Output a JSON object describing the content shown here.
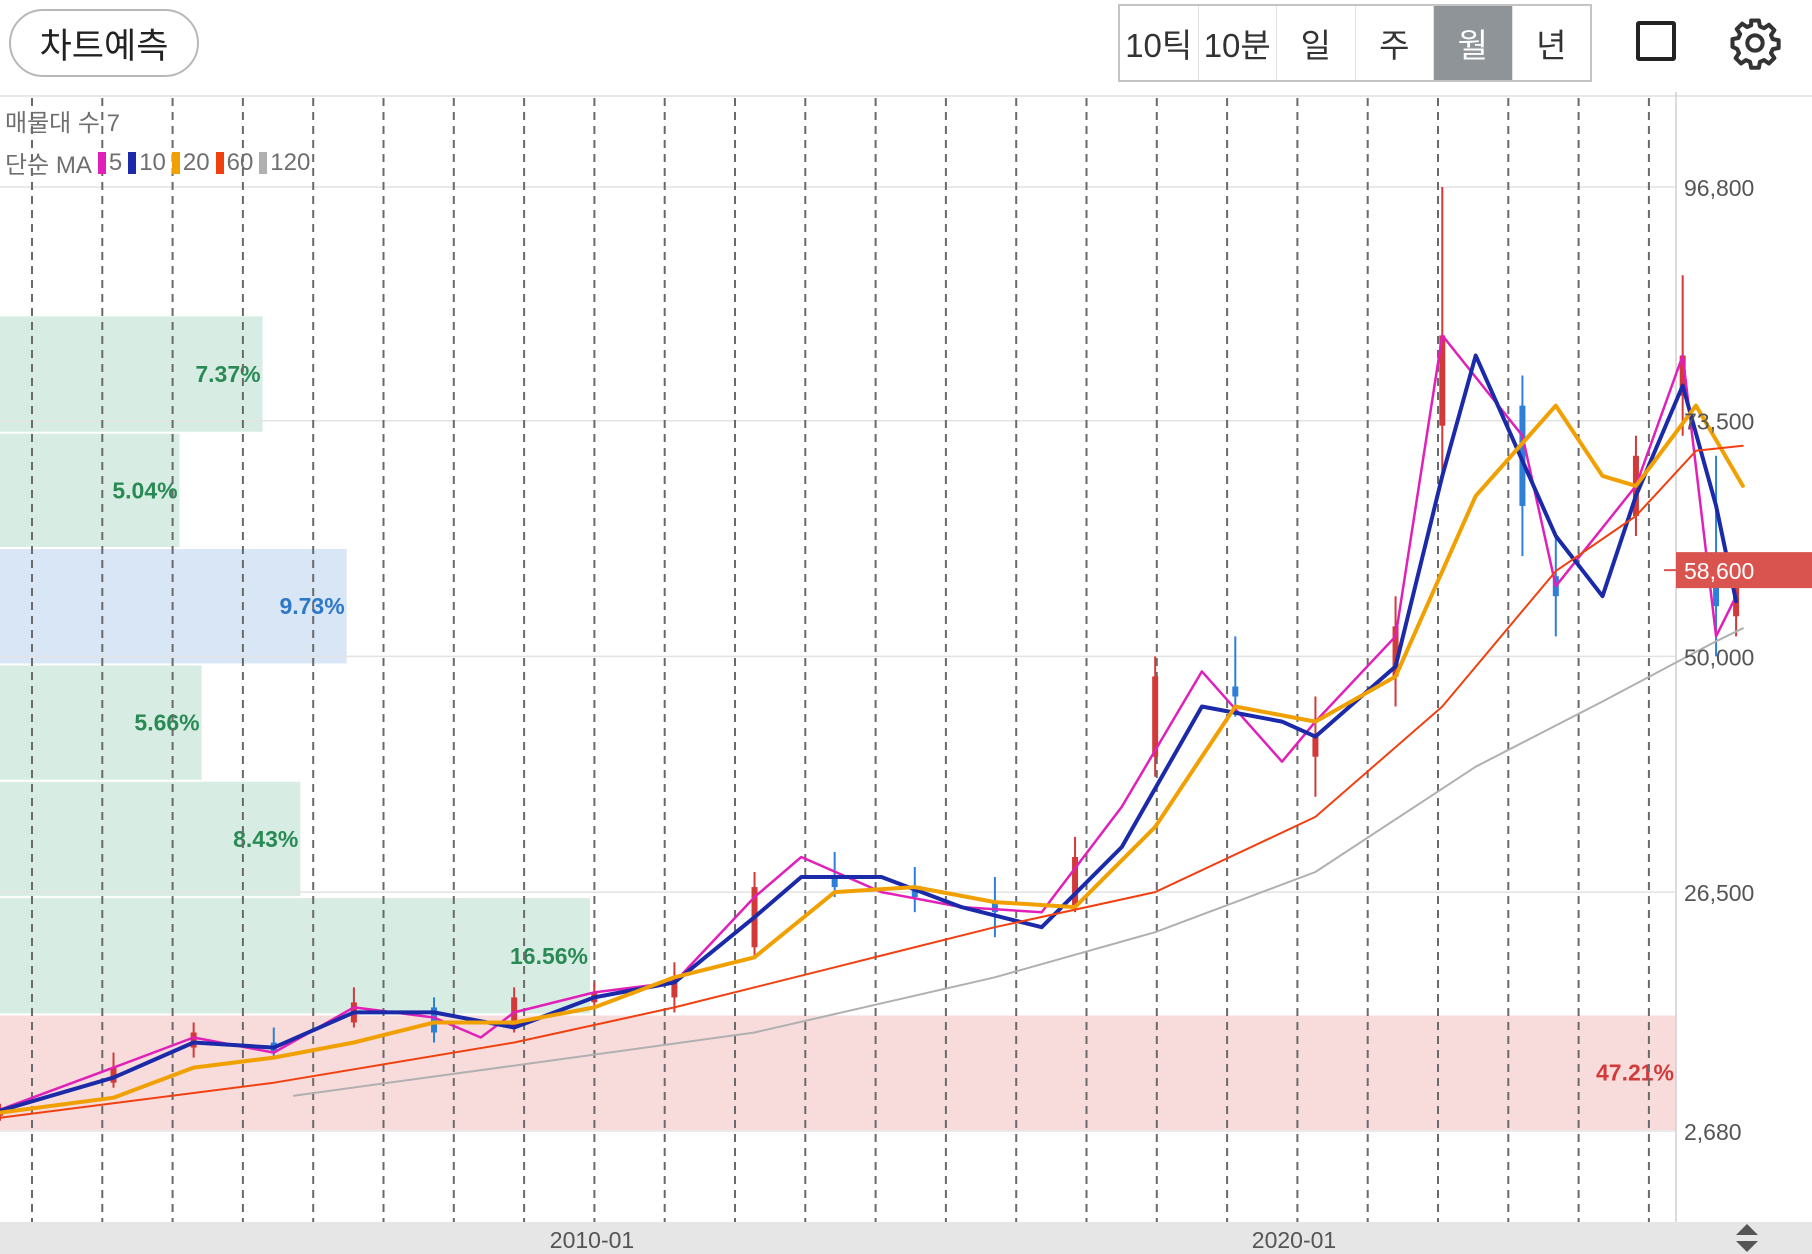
{
  "toolbar": {
    "predict_label": "차트예측",
    "periods": [
      {
        "label": "10틱",
        "active": false
      },
      {
        "label": "10분",
        "active": false
      },
      {
        "label": "일",
        "active": false
      },
      {
        "label": "주",
        "active": false
      },
      {
        "label": "월",
        "active": true
      },
      {
        "label": "년",
        "active": false
      }
    ],
    "icons": [
      "square-icon",
      "gear-icon"
    ]
  },
  "legend": {
    "volume_profile_label": "매물대 수 7",
    "ma_prefix": "단순 MA",
    "ma_items": [
      {
        "label": "5",
        "color": "#e020b8"
      },
      {
        "label": "10",
        "color": "#1a2aa8"
      },
      {
        "label": "20",
        "color": "#f0a000"
      },
      {
        "label": "60",
        "color": "#f04010"
      },
      {
        "label": "120",
        "color": "#b0b0b0"
      }
    ]
  },
  "chart_data": {
    "type": "candlestick",
    "interval": "월",
    "y_axis": {
      "ticks": [
        "96,800",
        "73,500",
        "50,000",
        "26,500",
        "2,680"
      ],
      "tick_values": [
        96800,
        73500,
        50000,
        26500,
        2680
      ],
      "range": [
        2680,
        96800
      ]
    },
    "x_axis": {
      "ticks": [
        "2010-01",
        "2020-01"
      ],
      "range": [
        "2003-01",
        "2023-12"
      ]
    },
    "current_price": {
      "label": "58,600",
      "value": 58600,
      "color": "#d9534f"
    },
    "volume_profile": {
      "bands": [
        {
          "label": "47.21%",
          "pct": 47.21,
          "low": 2680,
          "high": 14300,
          "highlight": "max"
        },
        {
          "label": "16.56%",
          "pct": 16.56,
          "low": 14300,
          "high": 26000
        },
        {
          "label": "8.43%",
          "pct": 8.43,
          "low": 26000,
          "high": 37600
        },
        {
          "label": "5.66%",
          "pct": 5.66,
          "low": 37600,
          "high": 49200
        },
        {
          "label": "9.73%",
          "pct": 9.73,
          "low": 49200,
          "high": 60800,
          "highlight": "current"
        },
        {
          "label": "5.04%",
          "pct": 5.04,
          "low": 60800,
          "high": 72300
        },
        {
          "label": "7.37%",
          "pct": 7.37,
          "low": 72300,
          "high": 84000
        }
      ]
    },
    "series": [
      {
        "name": "5",
        "color": "#e020b8",
        "values": [
          {
            "x": "2003-01",
            "y": 4800
          },
          {
            "x": "2004-06",
            "y": 9000
          },
          {
            "x": "2005-06",
            "y": 12000
          },
          {
            "x": "2006-06",
            "y": 10500
          },
          {
            "x": "2007-06",
            "y": 15000
          },
          {
            "x": "2008-06",
            "y": 14000
          },
          {
            "x": "2009-01",
            "y": 12000
          },
          {
            "x": "2009-06",
            "y": 14500
          },
          {
            "x": "2010-06",
            "y": 16500
          },
          {
            "x": "2011-06",
            "y": 17500
          },
          {
            "x": "2012-06",
            "y": 26000
          },
          {
            "x": "2013-01",
            "y": 30000
          },
          {
            "x": "2014-01",
            "y": 26500
          },
          {
            "x": "2015-01",
            "y": 25000
          },
          {
            "x": "2016-01",
            "y": 24500
          },
          {
            "x": "2017-01",
            "y": 35000
          },
          {
            "x": "2018-01",
            "y": 48500
          },
          {
            "x": "2019-01",
            "y": 39500
          },
          {
            "x": "2019-06",
            "y": 43500
          },
          {
            "x": "2020-06",
            "y": 52000
          },
          {
            "x": "2021-01",
            "y": 82000
          },
          {
            "x": "2022-01",
            "y": 72000
          },
          {
            "x": "2022-06",
            "y": 57000
          },
          {
            "x": "2023-06",
            "y": 67000
          },
          {
            "x": "2024-01",
            "y": 80000
          },
          {
            "x": "2024-06",
            "y": 52000
          },
          {
            "x": "2024-09",
            "y": 56000
          }
        ]
      },
      {
        "name": "10",
        "color": "#1a2aa8",
        "values": [
          {
            "x": "2003-01",
            "y": 4700
          },
          {
            "x": "2004-06",
            "y": 8000
          },
          {
            "x": "2005-06",
            "y": 11500
          },
          {
            "x": "2006-06",
            "y": 11000
          },
          {
            "x": "2007-06",
            "y": 14500
          },
          {
            "x": "2008-06",
            "y": 14500
          },
          {
            "x": "2009-06",
            "y": 13000
          },
          {
            "x": "2010-06",
            "y": 16000
          },
          {
            "x": "2011-06",
            "y": 17500
          },
          {
            "x": "2012-06",
            "y": 24000
          },
          {
            "x": "2013-01",
            "y": 28000
          },
          {
            "x": "2014-01",
            "y": 28000
          },
          {
            "x": "2015-01",
            "y": 25000
          },
          {
            "x": "2016-01",
            "y": 23000
          },
          {
            "x": "2017-01",
            "y": 31000
          },
          {
            "x": "2018-01",
            "y": 45000
          },
          {
            "x": "2019-01",
            "y": 43500
          },
          {
            "x": "2019-06",
            "y": 42000
          },
          {
            "x": "2020-06",
            "y": 49000
          },
          {
            "x": "2021-01",
            "y": 68000
          },
          {
            "x": "2021-06",
            "y": 80000
          },
          {
            "x": "2022-06",
            "y": 62000
          },
          {
            "x": "2023-01",
            "y": 56000
          },
          {
            "x": "2023-06",
            "y": 66000
          },
          {
            "x": "2024-01",
            "y": 77000
          },
          {
            "x": "2024-06",
            "y": 65000
          },
          {
            "x": "2024-09",
            "y": 55500
          }
        ]
      },
      {
        "name": "20",
        "color": "#f0a000",
        "values": [
          {
            "x": "2003-01",
            "y": 4500
          },
          {
            "x": "2004-06",
            "y": 6000
          },
          {
            "x": "2005-06",
            "y": 9000
          },
          {
            "x": "2006-06",
            "y": 10000
          },
          {
            "x": "2007-06",
            "y": 11500
          },
          {
            "x": "2008-06",
            "y": 13500
          },
          {
            "x": "2009-06",
            "y": 13500
          },
          {
            "x": "2010-06",
            "y": 15000
          },
          {
            "x": "2011-06",
            "y": 18000
          },
          {
            "x": "2012-06",
            "y": 20000
          },
          {
            "x": "2013-06",
            "y": 26500
          },
          {
            "x": "2014-06",
            "y": 27000
          },
          {
            "x": "2015-06",
            "y": 25500
          },
          {
            "x": "2016-06",
            "y": 25000
          },
          {
            "x": "2017-06",
            "y": 33000
          },
          {
            "x": "2018-06",
            "y": 45000
          },
          {
            "x": "2019-06",
            "y": 43500
          },
          {
            "x": "2020-06",
            "y": 48000
          },
          {
            "x": "2021-06",
            "y": 66000
          },
          {
            "x": "2022-06",
            "y": 75000
          },
          {
            "x": "2023-01",
            "y": 68000
          },
          {
            "x": "2023-06",
            "y": 67000
          },
          {
            "x": "2024-03",
            "y": 75000
          },
          {
            "x": "2024-10",
            "y": 67000
          }
        ]
      },
      {
        "name": "60",
        "color": "#f04010",
        "values": [
          {
            "x": "2003-01",
            "y": 4000
          },
          {
            "x": "2006-06",
            "y": 7500
          },
          {
            "x": "2009-06",
            "y": 11500
          },
          {
            "x": "2011-06",
            "y": 15000
          },
          {
            "x": "2013-06",
            "y": 19000
          },
          {
            "x": "2015-06",
            "y": 23000
          },
          {
            "x": "2017-06",
            "y": 26500
          },
          {
            "x": "2019-06",
            "y": 34000
          },
          {
            "x": "2021-01",
            "y": 45000
          },
          {
            "x": "2022-06",
            "y": 58500
          },
          {
            "x": "2023-06",
            "y": 64000
          },
          {
            "x": "2024-03",
            "y": 70500
          },
          {
            "x": "2024-10",
            "y": 71000
          }
        ]
      },
      {
        "name": "120",
        "color": "#b0b0b0",
        "values": [
          {
            "x": "2006-09",
            "y": 6200
          },
          {
            "x": "2009-06",
            "y": 9200
          },
          {
            "x": "2012-06",
            "y": 12500
          },
          {
            "x": "2015-06",
            "y": 18000
          },
          {
            "x": "2017-06",
            "y": 22500
          },
          {
            "x": "2019-06",
            "y": 28500
          },
          {
            "x": "2021-06",
            "y": 39000
          },
          {
            "x": "2023-01",
            "y": 45500
          },
          {
            "x": "2024-06",
            "y": 51500
          },
          {
            "x": "2024-10",
            "y": 52800
          }
        ]
      }
    ],
    "candles": [
      {
        "x": "2003-01",
        "o": 4200,
        "h": 5400,
        "l": 3700,
        "c": 5000
      },
      {
        "x": "2004-06",
        "o": 7500,
        "h": 10500,
        "l": 7000,
        "c": 9000
      },
      {
        "x": "2005-06",
        "o": 11000,
        "h": 13500,
        "l": 10000,
        "c": 12500
      },
      {
        "x": "2006-06",
        "o": 11500,
        "h": 13000,
        "l": 10000,
        "c": 10500
      },
      {
        "x": "2007-06",
        "o": 13500,
        "h": 17000,
        "l": 13000,
        "c": 15500
      },
      {
        "x": "2008-06",
        "o": 15000,
        "h": 16000,
        "l": 11500,
        "c": 12500
      },
      {
        "x": "2009-06",
        "o": 13000,
        "h": 17000,
        "l": 12500,
        "c": 16000
      },
      {
        "x": "2010-06",
        "o": 15500,
        "h": 17500,
        "l": 15000,
        "c": 16500
      },
      {
        "x": "2011-06",
        "o": 16000,
        "h": 19500,
        "l": 14500,
        "c": 18000
      },
      {
        "x": "2012-06",
        "o": 21000,
        "h": 28500,
        "l": 20000,
        "c": 27000
      },
      {
        "x": "2013-06",
        "o": 28000,
        "h": 30500,
        "l": 26000,
        "c": 27000
      },
      {
        "x": "2014-06",
        "o": 27000,
        "h": 29000,
        "l": 24500,
        "c": 26000
      },
      {
        "x": "2015-06",
        "o": 25500,
        "h": 28000,
        "l": 22000,
        "c": 24500
      },
      {
        "x": "2016-06",
        "o": 25000,
        "h": 32000,
        "l": 24500,
        "c": 30000
      },
      {
        "x": "2017-06",
        "o": 40000,
        "h": 50000,
        "l": 38000,
        "c": 48000
      },
      {
        "x": "2018-06",
        "o": 47000,
        "h": 52000,
        "l": 44000,
        "c": 46000
      },
      {
        "x": "2019-06",
        "o": 40000,
        "h": 46000,
        "l": 36000,
        "c": 42000
      },
      {
        "x": "2020-06",
        "o": 48000,
        "h": 56000,
        "l": 45000,
        "c": 53000
      },
      {
        "x": "2021-01",
        "o": 73000,
        "h": 96800,
        "l": 68000,
        "c": 82000
      },
      {
        "x": "2022-01",
        "o": 75000,
        "h": 78000,
        "l": 60000,
        "c": 65000
      },
      {
        "x": "2022-06",
        "o": 58000,
        "h": 62000,
        "l": 52000,
        "c": 56000
      },
      {
        "x": "2023-06",
        "o": 64000,
        "h": 72000,
        "l": 62000,
        "c": 70000
      },
      {
        "x": "2024-01",
        "o": 76000,
        "h": 88000,
        "l": 72000,
        "c": 80000
      },
      {
        "x": "2024-06",
        "o": 60000,
        "h": 70000,
        "l": 50000,
        "c": 55000
      },
      {
        "x": "2024-09",
        "o": 54000,
        "h": 59000,
        "l": 52000,
        "c": 58600
      }
    ]
  }
}
